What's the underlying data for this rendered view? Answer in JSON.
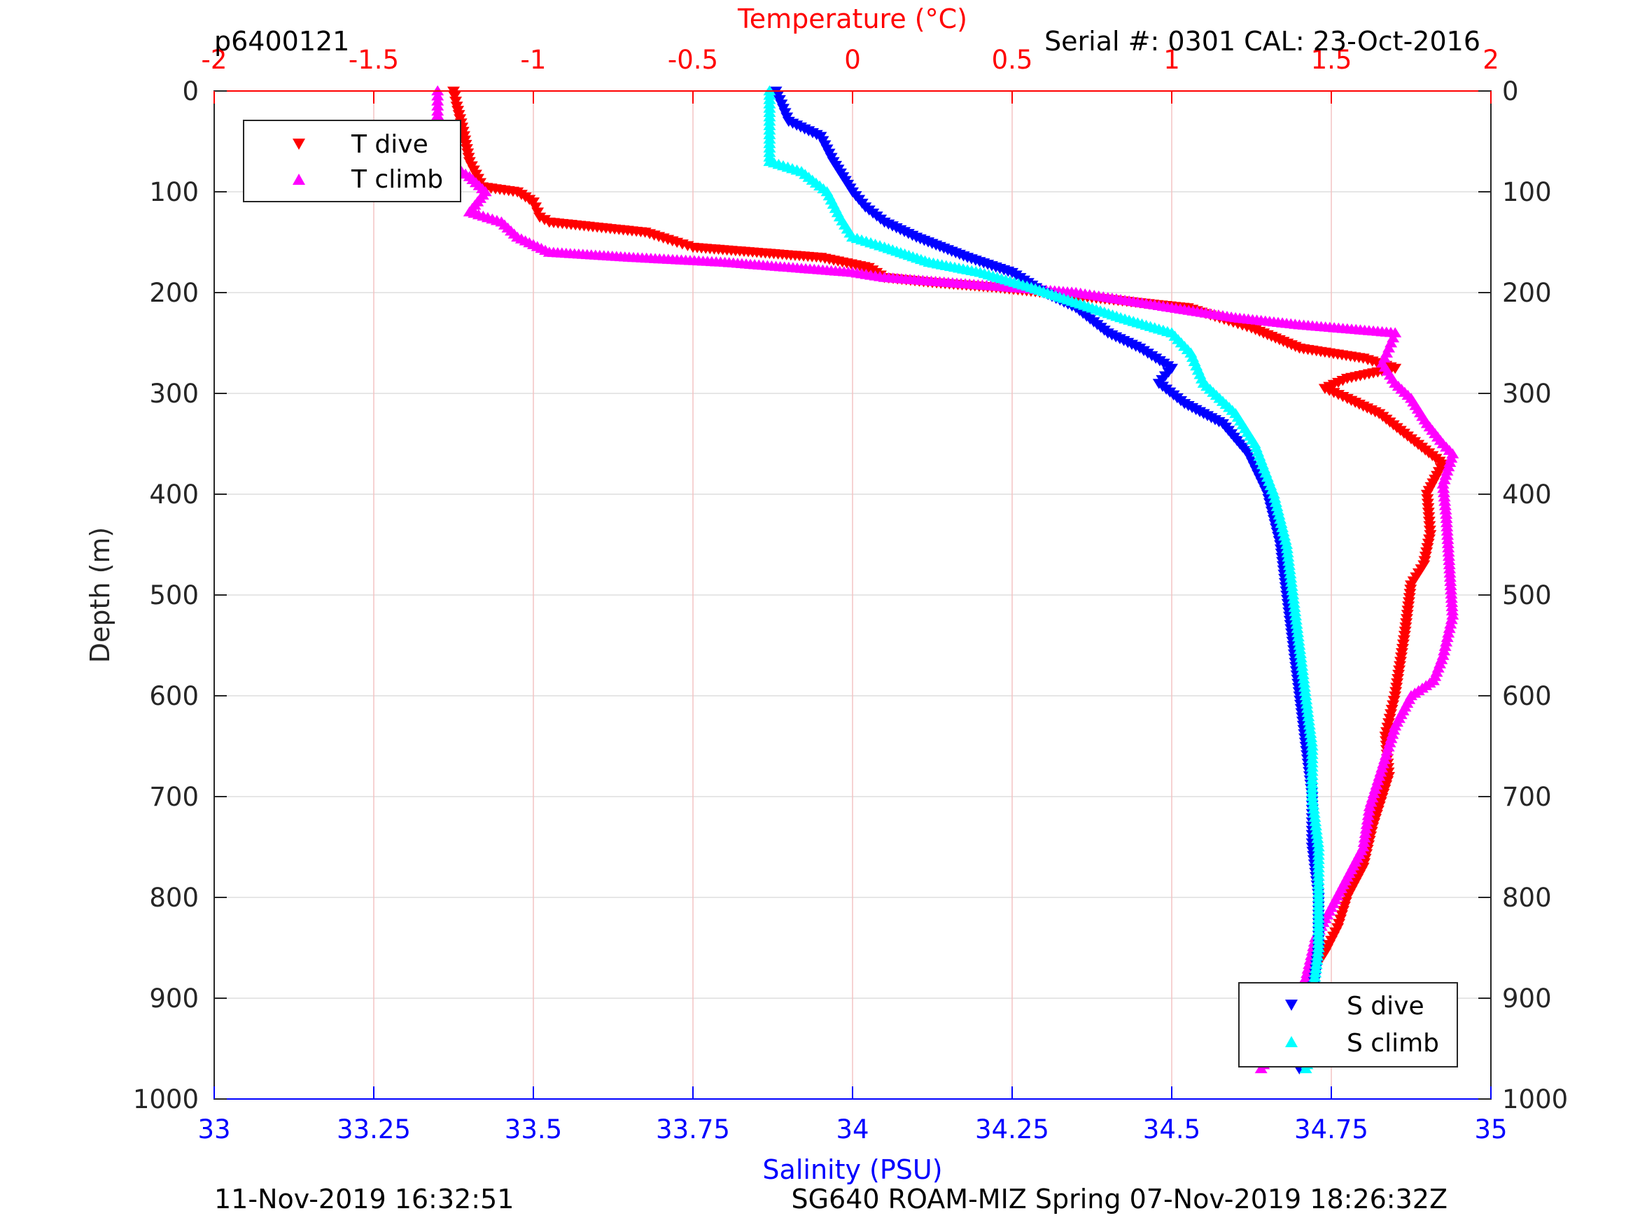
{
  "chart_data": {
    "type": "scatter",
    "title_left": "p6400121",
    "title_right": "Serial #: 0301  CAL: 23-Oct-2016",
    "footer_left": "11-Nov-2019 16:32:51",
    "footer_right": "SG640 ROAM-MIZ Spring 07-Nov-2019 18:26:32Z",
    "ylabel": "Depth (m)",
    "x_top_label": "Temperature (°C)",
    "x_bottom_label": "Salinity (PSU)",
    "ylim": [
      0,
      1000
    ],
    "y_reversed": true,
    "x_top_lim": [
      -2,
      2
    ],
    "x_bottom_lim": [
      33,
      35
    ],
    "y_ticks": [
      "0",
      "100",
      "200",
      "300",
      "400",
      "500",
      "600",
      "700",
      "800",
      "900",
      "1000"
    ],
    "x_top_ticks": [
      "-2",
      "-1.5",
      "-1",
      "-0.5",
      "0",
      "0.5",
      "1",
      "1.5",
      "2"
    ],
    "x_bottom_ticks": [
      "33",
      "33.25",
      "33.5",
      "33.75",
      "34",
      "34.25",
      "34.5",
      "34.75",
      "35"
    ],
    "grid": true,
    "colors": {
      "temperature": "#ff0000",
      "salinity": "#0000ff",
      "t_dive": "#ff0000",
      "t_climb": "#ff00ff",
      "s_dive": "#0000ff",
      "s_climb": "#00ffff",
      "grid_temp": "#f4c4c4",
      "grid_depth": "#dddddd"
    },
    "legend_temperature": {
      "position": "top-left",
      "entries": [
        "T dive",
        "T climb"
      ]
    },
    "legend_salinity": {
      "position": "bottom-right",
      "entries": [
        "S dive",
        "S climb"
      ]
    },
    "series": [
      {
        "name": "T dive",
        "axis": "temperature",
        "marker": "triangle-down",
        "color": "#ff0000",
        "points": [
          [
            -1.25,
            0
          ],
          [
            -1.24,
            15
          ],
          [
            -1.22,
            40
          ],
          [
            -1.2,
            70
          ],
          [
            -1.16,
            95
          ],
          [
            -1.05,
            100
          ],
          [
            -1.0,
            110
          ],
          [
            -0.98,
            125
          ],
          [
            -0.95,
            130
          ],
          [
            -0.8,
            135
          ],
          [
            -0.65,
            140
          ],
          [
            -0.55,
            150
          ],
          [
            -0.5,
            155
          ],
          [
            -0.3,
            160
          ],
          [
            -0.1,
            165
          ],
          [
            0.05,
            175
          ],
          [
            0.1,
            185
          ],
          [
            0.25,
            190
          ],
          [
            0.45,
            195
          ],
          [
            0.6,
            200
          ],
          [
            0.75,
            205
          ],
          [
            0.9,
            210
          ],
          [
            1.05,
            215
          ],
          [
            1.15,
            225
          ],
          [
            1.25,
            235
          ],
          [
            1.4,
            255
          ],
          [
            1.6,
            265
          ],
          [
            1.7,
            275
          ],
          [
            1.55,
            285
          ],
          [
            1.48,
            295
          ],
          [
            1.55,
            305
          ],
          [
            1.65,
            320
          ],
          [
            1.75,
            345
          ],
          [
            1.85,
            370
          ],
          [
            1.8,
            400
          ],
          [
            1.81,
            440
          ],
          [
            1.79,
            470
          ],
          [
            1.75,
            490
          ],
          [
            1.73,
            540
          ],
          [
            1.7,
            600
          ],
          [
            1.67,
            640
          ],
          [
            1.68,
            680
          ],
          [
            1.63,
            730
          ],
          [
            1.6,
            770
          ],
          [
            1.55,
            800
          ],
          [
            1.52,
            830
          ],
          [
            1.48,
            855
          ],
          [
            1.43,
            880
          ]
        ]
      },
      {
        "name": "T climb",
        "axis": "temperature",
        "marker": "triangle-up",
        "color": "#ff00ff",
        "points": [
          [
            -1.3,
            0
          ],
          [
            -1.3,
            20
          ],
          [
            -1.3,
            45
          ],
          [
            -1.3,
            70
          ],
          [
            -1.25,
            75
          ],
          [
            -1.2,
            85
          ],
          [
            -1.15,
            100
          ],
          [
            -1.2,
            120
          ],
          [
            -1.1,
            130
          ],
          [
            -1.05,
            145
          ],
          [
            -0.95,
            160
          ],
          [
            -0.7,
            165
          ],
          [
            -0.4,
            170
          ],
          [
            -0.2,
            175
          ],
          [
            0.0,
            180
          ],
          [
            0.1,
            185
          ],
          [
            0.3,
            190
          ],
          [
            0.5,
            195
          ],
          [
            0.7,
            200
          ],
          [
            0.8,
            205
          ],
          [
            1.0,
            215
          ],
          [
            1.2,
            225
          ],
          [
            1.4,
            232
          ],
          [
            1.7,
            240
          ],
          [
            1.68,
            255
          ],
          [
            1.66,
            270
          ],
          [
            1.7,
            290
          ],
          [
            1.75,
            305
          ],
          [
            1.8,
            330
          ],
          [
            1.85,
            350
          ],
          [
            1.88,
            360
          ],
          [
            1.85,
            390
          ],
          [
            1.86,
            420
          ],
          [
            1.87,
            470
          ],
          [
            1.88,
            520
          ],
          [
            1.85,
            560
          ],
          [
            1.82,
            585
          ],
          [
            1.75,
            600
          ],
          [
            1.7,
            630
          ],
          [
            1.65,
            680
          ],
          [
            1.62,
            710
          ],
          [
            1.6,
            750
          ],
          [
            1.55,
            780
          ],
          [
            1.5,
            810
          ],
          [
            1.45,
            840
          ],
          [
            1.42,
            880
          ],
          [
            1.38,
            900
          ],
          [
            1.33,
            930
          ],
          [
            1.32,
            950
          ],
          [
            1.28,
            970
          ]
        ]
      },
      {
        "name": "S dive",
        "axis": "salinity",
        "marker": "triangle-down",
        "color": "#0000ff",
        "points": [
          [
            33.88,
            0
          ],
          [
            33.9,
            30
          ],
          [
            33.95,
            45
          ],
          [
            33.97,
            70
          ],
          [
            34.0,
            100
          ],
          [
            34.02,
            115
          ],
          [
            34.05,
            130
          ],
          [
            34.1,
            145
          ],
          [
            34.18,
            165
          ],
          [
            34.25,
            180
          ],
          [
            34.3,
            200
          ],
          [
            34.35,
            215
          ],
          [
            34.4,
            240
          ],
          [
            34.45,
            255
          ],
          [
            34.5,
            275
          ],
          [
            34.48,
            290
          ],
          [
            34.52,
            310
          ],
          [
            34.58,
            330
          ],
          [
            34.62,
            360
          ],
          [
            34.65,
            400
          ],
          [
            34.67,
            450
          ],
          [
            34.68,
            500
          ],
          [
            34.69,
            550
          ],
          [
            34.7,
            600
          ],
          [
            34.71,
            650
          ],
          [
            34.72,
            700
          ],
          [
            34.72,
            750
          ],
          [
            34.73,
            800
          ],
          [
            34.73,
            850
          ],
          [
            34.72,
            900
          ],
          [
            34.71,
            950
          ],
          [
            34.7,
            970
          ]
        ]
      },
      {
        "name": "S climb",
        "axis": "salinity",
        "marker": "triangle-up",
        "color": "#00ffff",
        "points": [
          [
            33.87,
            0
          ],
          [
            33.87,
            30
          ],
          [
            33.87,
            70
          ],
          [
            33.92,
            80
          ],
          [
            33.96,
            100
          ],
          [
            33.98,
            125
          ],
          [
            34.0,
            145
          ],
          [
            34.05,
            155
          ],
          [
            34.12,
            170
          ],
          [
            34.2,
            180
          ],
          [
            34.28,
            195
          ],
          [
            34.35,
            210
          ],
          [
            34.42,
            225
          ],
          [
            34.5,
            240
          ],
          [
            34.53,
            260
          ],
          [
            34.55,
            290
          ],
          [
            34.6,
            320
          ],
          [
            34.63,
            350
          ],
          [
            34.66,
            400
          ],
          [
            34.68,
            450
          ],
          [
            34.69,
            500
          ],
          [
            34.7,
            550
          ],
          [
            34.71,
            600
          ],
          [
            34.72,
            650
          ],
          [
            34.72,
            700
          ],
          [
            34.73,
            750
          ],
          [
            34.73,
            800
          ],
          [
            34.73,
            850
          ],
          [
            34.72,
            900
          ],
          [
            34.72,
            950
          ],
          [
            34.71,
            970
          ]
        ]
      }
    ]
  }
}
